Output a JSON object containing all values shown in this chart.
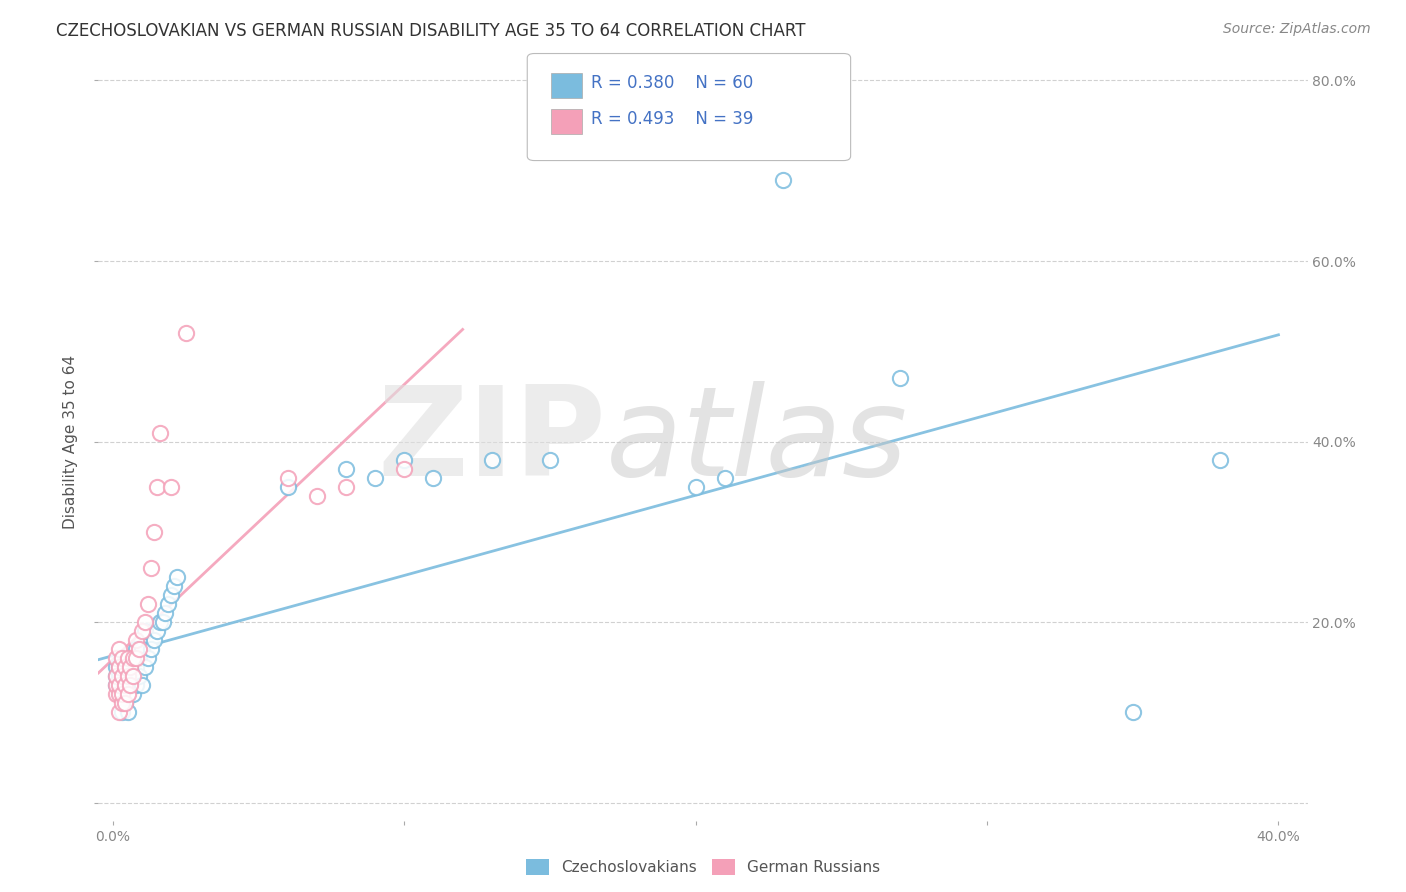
{
  "title": "CZECHOSLOVAKIAN VS GERMAN RUSSIAN DISABILITY AGE 35 TO 64 CORRELATION CHART",
  "source": "Source: ZipAtlas.com",
  "ylabel": "Disability Age 35 to 64",
  "legend_labels": [
    "Czechoslovakians",
    "German Russians"
  ],
  "xlim": [
    0.0,
    0.4
  ],
  "ylim": [
    0.0,
    0.8
  ],
  "xticks": [
    0.0,
    0.1,
    0.2,
    0.3,
    0.4
  ],
  "yticks": [
    0.0,
    0.2,
    0.4,
    0.6,
    0.8
  ],
  "xtick_labels": [
    "0.0%",
    "",
    "",
    "",
    "40.0%"
  ],
  "ytick_labels_right": [
    "",
    "20.0%",
    "40.0%",
    "60.0%",
    "80.0%"
  ],
  "color_czech": "#7bbcde",
  "color_german": "#f4a0b8",
  "title_color": "#333333",
  "axis_label_color": "#555555",
  "tick_color": "#888888",
  "grid_color": "#cccccc",
  "background_color": "#ffffff",
  "legend_text_color": "#4472c4",
  "czech_x": [
    0.001,
    0.001,
    0.001,
    0.002,
    0.002,
    0.002,
    0.002,
    0.003,
    0.003,
    0.003,
    0.003,
    0.003,
    0.004,
    0.004,
    0.004,
    0.004,
    0.005,
    0.005,
    0.005,
    0.005,
    0.005,
    0.006,
    0.006,
    0.006,
    0.007,
    0.007,
    0.007,
    0.008,
    0.008,
    0.008,
    0.009,
    0.009,
    0.01,
    0.01,
    0.011,
    0.011,
    0.012,
    0.013,
    0.014,
    0.015,
    0.016,
    0.017,
    0.018,
    0.019,
    0.02,
    0.021,
    0.022,
    0.06,
    0.08,
    0.09,
    0.1,
    0.11,
    0.13,
    0.15,
    0.2,
    0.21,
    0.23,
    0.27,
    0.35,
    0.38
  ],
  "czech_y": [
    0.13,
    0.14,
    0.15,
    0.12,
    0.13,
    0.14,
    0.15,
    0.1,
    0.12,
    0.13,
    0.14,
    0.16,
    0.11,
    0.13,
    0.14,
    0.16,
    0.1,
    0.12,
    0.13,
    0.14,
    0.16,
    0.13,
    0.14,
    0.15,
    0.12,
    0.14,
    0.15,
    0.13,
    0.15,
    0.17,
    0.14,
    0.16,
    0.13,
    0.17,
    0.15,
    0.19,
    0.16,
    0.17,
    0.18,
    0.19,
    0.2,
    0.2,
    0.21,
    0.22,
    0.23,
    0.24,
    0.25,
    0.35,
    0.37,
    0.36,
    0.38,
    0.36,
    0.38,
    0.38,
    0.35,
    0.36,
    0.69,
    0.47,
    0.1,
    0.38
  ],
  "german_x": [
    0.001,
    0.001,
    0.001,
    0.001,
    0.002,
    0.002,
    0.002,
    0.002,
    0.002,
    0.003,
    0.003,
    0.003,
    0.003,
    0.004,
    0.004,
    0.004,
    0.005,
    0.005,
    0.005,
    0.006,
    0.006,
    0.007,
    0.007,
    0.008,
    0.008,
    0.009,
    0.01,
    0.011,
    0.012,
    0.013,
    0.014,
    0.015,
    0.016,
    0.02,
    0.025,
    0.06,
    0.07,
    0.08,
    0.1
  ],
  "german_y": [
    0.12,
    0.13,
    0.14,
    0.16,
    0.1,
    0.12,
    0.13,
    0.15,
    0.17,
    0.11,
    0.12,
    0.14,
    0.16,
    0.11,
    0.13,
    0.15,
    0.12,
    0.14,
    0.16,
    0.13,
    0.15,
    0.14,
    0.16,
    0.16,
    0.18,
    0.17,
    0.19,
    0.2,
    0.22,
    0.26,
    0.3,
    0.35,
    0.41,
    0.35,
    0.52,
    0.36,
    0.34,
    0.35,
    0.37
  ],
  "title_fontsize": 12,
  "axis_label_fontsize": 11,
  "tick_fontsize": 10,
  "legend_fontsize": 12,
  "source_fontsize": 10
}
